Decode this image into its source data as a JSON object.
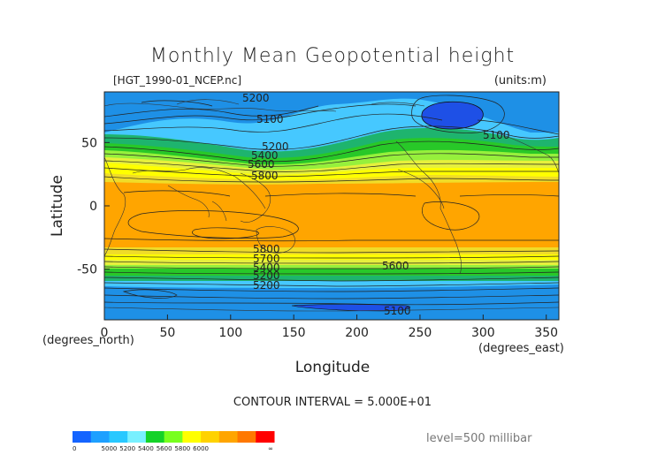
{
  "chart_data": {
    "type": "contour",
    "title": "Monthly Mean Geopotential height",
    "subtitle_left": "[HGT_1990-01_NCEP.nc]",
    "subtitle_right": "(units:m)",
    "xlabel": "Longitude",
    "ylabel": "Latitude",
    "x_unit": "(degrees_east)",
    "y_unit": "(degrees_north)",
    "xlim": [
      0,
      360
    ],
    "ylim": [
      -90,
      90
    ],
    "xticks": [
      0,
      50,
      100,
      150,
      200,
      250,
      300,
      350
    ],
    "yticks": [
      50,
      0,
      -50
    ],
    "contour_interval_text": "CONTOUR INTERVAL = 5.000E+01",
    "level_text": "level=500 millibar",
    "contour_labels": [
      {
        "text": "5200",
        "lon": 120,
        "lat": 85
      },
      {
        "text": "5100",
        "lon": 135,
        "lat": 68
      },
      {
        "text": "5100",
        "lon": 305,
        "lat": 57
      },
      {
        "text": "5200",
        "lon": 140,
        "lat": 48
      },
      {
        "text": "5400",
        "lon": 130,
        "lat": 43
      },
      {
        "text": "5600",
        "lon": 128,
        "lat": 35
      },
      {
        "text": "5800",
        "lon": 130,
        "lat": 27
      },
      {
        "text": "5800",
        "lon": 133,
        "lat": -32
      },
      {
        "text": "5700",
        "lon": 133,
        "lat": -39
      },
      {
        "text": "5600",
        "lon": 225,
        "lat": -46
      },
      {
        "text": "5400",
        "lon": 133,
        "lat": -50
      },
      {
        "text": "5200",
        "lon": 133,
        "lat": -55
      },
      {
        "text": "5200",
        "lon": 133,
        "lat": -63
      },
      {
        "text": "5100",
        "lon": 230,
        "lat": -83
      }
    ],
    "colorbar": {
      "colors": [
        "#1464ff",
        "#1ea0ff",
        "#28c8ff",
        "#78f0ff",
        "#14d228",
        "#78ff1e",
        "#ffff00",
        "#ffd200",
        "#ffa500",
        "#ff7800",
        "#ff0000"
      ],
      "tick_labels": [
        "0",
        "5000",
        "5200",
        "5400",
        "5600",
        "5800",
        "6000",
        "∞"
      ]
    },
    "fill_colors": {
      "below_5000": "#1e50e6",
      "5000_5200": "#1e90e6",
      "5200_5400": "#46c8ff",
      "5400_5500": "#1eb46e",
      "5500_5600": "#28c828",
      "5600_5700": "#96f03c",
      "5700_5750": "#e6f03c",
      "5750_5800": "#ffff00",
      "5800_5900": "#f0dc28",
      "above_5900": "#ffa500"
    }
  }
}
